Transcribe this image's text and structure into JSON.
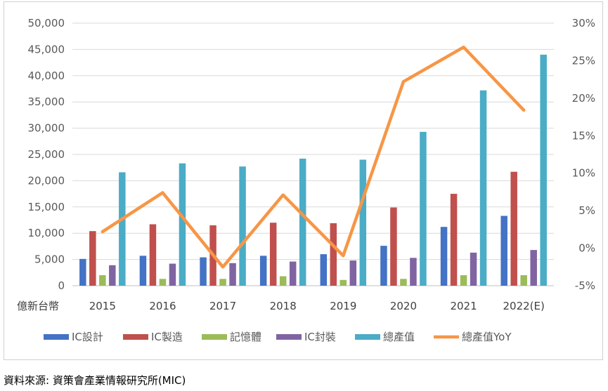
{
  "unit_label": "億新台幣",
  "source_note": "資料來源: 資策會產業情報研究所(MIC)",
  "chart_data": {
    "type": "bar",
    "categories": [
      "2015",
      "2016",
      "2017",
      "2018",
      "2019",
      "2020",
      "2021",
      "2022(E)"
    ],
    "series": [
      {
        "name": "IC設計",
        "type": "bar",
        "axis": "left",
        "color": "#4472C4",
        "values": [
          5100,
          5700,
          5400,
          5700,
          6000,
          7600,
          11200,
          13300
        ]
      },
      {
        "name": "IC製造",
        "type": "bar",
        "axis": "left",
        "color": "#C0504D",
        "values": [
          10400,
          11700,
          11500,
          12000,
          11900,
          14900,
          17500,
          21700
        ]
      },
      {
        "name": "記憶體",
        "type": "bar",
        "axis": "left",
        "color": "#9BBB59",
        "values": [
          2000,
          1300,
          1300,
          1800,
          1100,
          1300,
          2000,
          2000
        ]
      },
      {
        "name": "IC封裝",
        "type": "bar",
        "axis": "left",
        "color": "#8064A2",
        "values": [
          3900,
          4200,
          4300,
          4600,
          4800,
          5300,
          6300,
          6800
        ]
      },
      {
        "name": "總產值",
        "type": "bar",
        "axis": "left",
        "color": "#4BACC6",
        "values": [
          21600,
          23300,
          22700,
          24200,
          24000,
          29300,
          37200,
          44000
        ]
      },
      {
        "name": "總產值YoY",
        "type": "line",
        "axis": "right",
        "color": "#F79646",
        "values": [
          2.2,
          7.4,
          -2.5,
          7.1,
          -1.0,
          22.2,
          26.8,
          18.4
        ]
      }
    ],
    "left_axis": {
      "min": 0,
      "max": 50000,
      "ticks": [
        "0",
        "5,000",
        "10,000",
        "15,000",
        "20,000",
        "25,000",
        "30,000",
        "35,000",
        "40,000",
        "45,000",
        "50,000"
      ]
    },
    "right_axis": {
      "min": -5,
      "max": 30,
      "ticks": [
        "-5%",
        "0%",
        "5%",
        "10%",
        "15%",
        "20%",
        "25%",
        "30%"
      ]
    },
    "legend_position": "bottom",
    "grid": true
  }
}
